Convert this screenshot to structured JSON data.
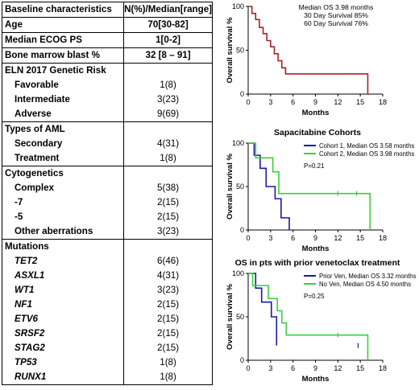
{
  "table": {
    "header": [
      "Baseline characteristics",
      "N(%)/Median[range]"
    ],
    "top_rows": [
      {
        "label": "Age",
        "value": "70[30-82]"
      },
      {
        "label": "Median ECOG PS",
        "value": "1[0-2]"
      },
      {
        "label": "Bone marrow blast %",
        "value": "32 [8 – 91]"
      }
    ],
    "blocks": [
      {
        "title": "ELN 2017 Genetic Risk",
        "italic": false,
        "rows": [
          {
            "label": "Favorable",
            "value": "1(8)"
          },
          {
            "label": "Intermediate",
            "value": "3(23)"
          },
          {
            "label": "Adverse",
            "value": "9(69)"
          }
        ]
      },
      {
        "title": "Types of AML",
        "italic": false,
        "rows": [
          {
            "label": "Secondary",
            "value": "4(31)"
          },
          {
            "label": "Treatment",
            "value": "1(8)"
          }
        ]
      },
      {
        "title": "Cytogenetics",
        "italic": false,
        "rows": [
          {
            "label": "Complex",
            "value": "5(38)"
          },
          {
            "label": "-7",
            "value": "2(15)"
          },
          {
            "label": "-5",
            "value": "2(15)"
          },
          {
            "label": "Other aberrations",
            "value": "3(23)"
          }
        ]
      },
      {
        "title": "Mutations",
        "italic": true,
        "rows": [
          {
            "label": "TET2",
            "value": "6(46)"
          },
          {
            "label": "ASXL1",
            "value": "4(31)"
          },
          {
            "label": "WT1",
            "value": "3(23)"
          },
          {
            "label": "NF1",
            "value": "2(15)"
          },
          {
            "label": "ETV6",
            "value": "2(15)"
          },
          {
            "label": "SRSF2",
            "value": "2(15)"
          },
          {
            "label": "STAG2",
            "value": "2(15)"
          },
          {
            "label": "TP53",
            "value": "1(8)"
          },
          {
            "label": "RUNX1",
            "value": "1(8)"
          }
        ]
      }
    ]
  },
  "chart_data": [
    {
      "type": "line",
      "title": "",
      "xlabel": "Months",
      "ylabel": "Overall survival %",
      "xlim": [
        0,
        18
      ],
      "ylim": [
        0,
        100
      ],
      "xticks": [
        0,
        3,
        6,
        9,
        12,
        15,
        18
      ],
      "yticks": [
        0,
        50,
        100
      ],
      "annotations": [
        "Median OS 3.98 months",
        "30 Day Survival 85%",
        "60 Day Survival 76%"
      ],
      "series": [
        {
          "name": "",
          "color": "#a0262a",
          "x": [
            0,
            0.5,
            1,
            1.5,
            2,
            2.5,
            3,
            3.5,
            4,
            4.5,
            5,
            16
          ],
          "y": [
            100,
            92,
            85,
            76,
            69,
            61,
            54,
            46,
            38,
            30,
            23,
            0
          ],
          "censored_x": []
        }
      ]
    },
    {
      "type": "line",
      "title": "Sapacitabine Cohorts",
      "xlabel": "Months",
      "ylabel": "Overall survival %",
      "xlim": [
        0,
        18
      ],
      "ylim": [
        0,
        100
      ],
      "xticks": [
        0,
        3,
        6,
        9,
        12,
        15,
        18
      ],
      "yticks": [
        0,
        50,
        100
      ],
      "annotations": [
        "P=0.21"
      ],
      "series": [
        {
          "name": "Cohort 1, Median OS 3.58 months",
          "color": "#1a1a9e",
          "x": [
            0,
            0.8,
            1.6,
            2.4,
            3.6,
            4.4,
            5.5
          ],
          "y": [
            100,
            86,
            71,
            50,
            36,
            14,
            0
          ],
          "censored_x": []
        },
        {
          "name": "Cohort 2, Median OS 3.98 months",
          "color": "#3ccf3c",
          "x": [
            0,
            1,
            3.3,
            4.1,
            16.3
          ],
          "y": [
            100,
            83,
            67,
            42,
            0
          ],
          "censored_x": [
            12,
            14.5
          ]
        }
      ]
    },
    {
      "type": "line",
      "title": "OS in pts with prior venetoclax treatment",
      "xlabel": "Months",
      "ylabel": "Overall survival %",
      "xlim": [
        0,
        18
      ],
      "ylim": [
        0,
        100
      ],
      "xticks": [
        0,
        3,
        6,
        9,
        12,
        15,
        18
      ],
      "yticks": [
        0,
        50,
        100
      ],
      "annotations": [
        "P=0.25"
      ],
      "series": [
        {
          "name": "Prior Ven, Median OS 3.32 months",
          "color": "#1a1a9e",
          "x": [
            0,
            1,
            1.8,
            3.1,
            3.8
          ],
          "y": [
            100,
            83,
            67,
            50,
            17
          ],
          "censored_x": [
            14.7
          ]
        },
        {
          "name": "No Ven, Median OS 4.50 months",
          "color": "#3ccf3c",
          "x": [
            0,
            0.6,
            2.7,
            3.9,
            4.5,
            5.1,
            16
          ],
          "y": [
            100,
            86,
            71,
            57,
            43,
            29,
            0
          ],
          "censored_x": [
            12
          ]
        }
      ]
    }
  ]
}
